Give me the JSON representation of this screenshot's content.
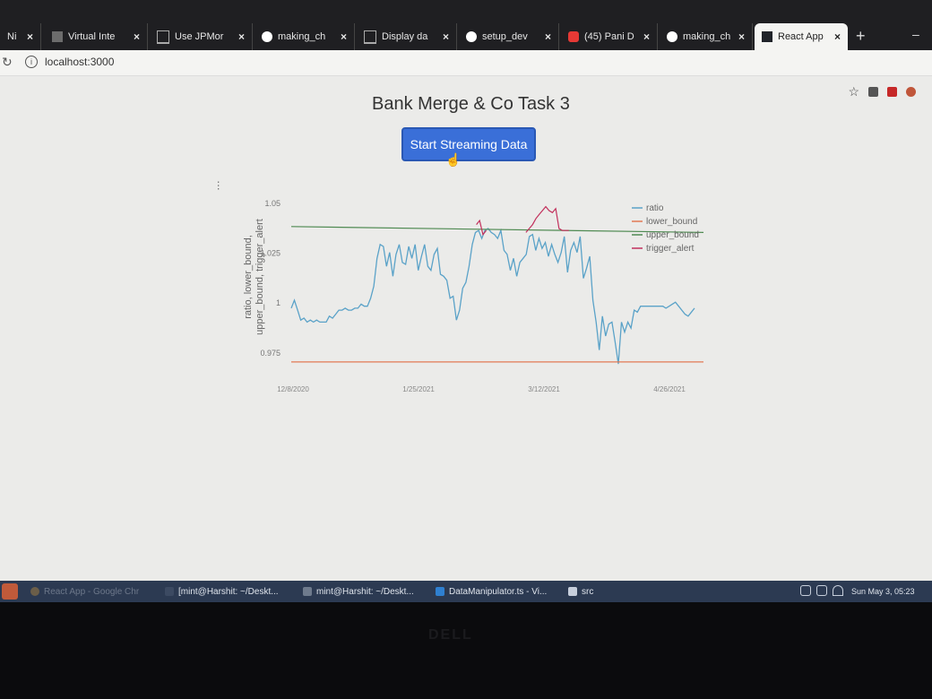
{
  "browser": {
    "tabs": [
      {
        "label": "Ni",
        "color": "#999999"
      },
      {
        "label": "Virtual Inte",
        "color": "#6c6c6c"
      },
      {
        "label": "Use JPMor",
        "color": "#aaaaaa"
      },
      {
        "label": "making_ch",
        "color": "#ffffff"
      },
      {
        "label": "Display da",
        "color": "#aaaaaa"
      },
      {
        "label": "setup_dev",
        "color": "#ffffff"
      },
      {
        "label": "(45) Pani D",
        "color": "#e53935"
      },
      {
        "label": "making_ch",
        "color": "#ffffff"
      },
      {
        "label": "React App",
        "color": "#20232a"
      }
    ],
    "close_glyph": "×",
    "new_tab_glyph": "+",
    "url": "localhost:3000",
    "star_glyph": "☆"
  },
  "page": {
    "title": "Bank Merge & Co Task 3",
    "button_label": "Start Streaming Data",
    "dots": "…",
    "ylabel": "ratio, lower_bound, upper_bound, trigger_alert"
  },
  "chart_data": {
    "type": "line",
    "y_ticks": [
      "1.05",
      "1.025",
      "1",
      "0.975"
    ],
    "x_ticks": [
      "12/8/2020",
      "1/25/2021",
      "3/12/2021",
      "4/26/2021"
    ],
    "ylim": [
      0.965,
      1.055
    ],
    "legend_position": "top-right",
    "series": [
      {
        "name": "ratio",
        "color": "#5aa2c8",
        "values": [
          0.997,
          1.001,
          0.996,
          0.991,
          0.992,
          0.99,
          0.991,
          0.99,
          0.991,
          0.99,
          0.99,
          0.99,
          0.993,
          0.992,
          0.994,
          0.996,
          0.996,
          0.997,
          0.996,
          0.996,
          0.997,
          0.997,
          0.999,
          0.998,
          0.998,
          1.002,
          1.008,
          1.022,
          1.029,
          1.028,
          1.018,
          1.025,
          1.013,
          1.024,
          1.029,
          1.02,
          1.019,
          1.028,
          1.022,
          1.029,
          1.016,
          1.023,
          1.029,
          1.018,
          1.016,
          1.024,
          1.027,
          1.014,
          1.013,
          1.011,
          1.002,
          1.003,
          0.991,
          0.996,
          1.007,
          1.01,
          1.018,
          1.029,
          1.035,
          1.036,
          1.032,
          1.036,
          1.037,
          1.035,
          1.034,
          1.032,
          1.036,
          1.026,
          1.024,
          1.016,
          1.022,
          1.013,
          1.02,
          1.022,
          1.024,
          1.033,
          1.034,
          1.026,
          1.032,
          1.027,
          1.03,
          1.023,
          1.029,
          1.024,
          1.02,
          1.025,
          1.033,
          1.015,
          1.026,
          1.03,
          1.025,
          1.033,
          1.012,
          1.017,
          1.023,
          1.001,
          0.99,
          0.976,
          0.993,
          0.983,
          0.989,
          0.99,
          0.98,
          0.969,
          0.99,
          0.985,
          0.99,
          0.987,
          0.996,
          0.995,
          0.998,
          0.998,
          0.998,
          0.998,
          0.998,
          0.998,
          0.998,
          0.998,
          0.997,
          0.998,
          0.999,
          1,
          0.998,
          0.996,
          0.994,
          0.993,
          0.995,
          0.997
        ]
      },
      {
        "name": "lower_bound",
        "color": "#e27a55",
        "values": [
          0.97,
          0.97
        ]
      },
      {
        "name": "upper_bound",
        "color": "#4f8a52",
        "values": [
          1.038,
          1.035
        ]
      },
      {
        "name": "trigger_alert",
        "color": "#c2305c",
        "values": [
          null,
          null,
          null,
          null,
          null,
          null,
          null,
          null,
          null,
          null,
          null,
          null,
          null,
          null,
          null,
          null,
          null,
          null,
          null,
          null,
          null,
          null,
          null,
          null,
          null,
          null,
          null,
          null,
          null,
          null,
          null,
          null,
          null,
          null,
          null,
          null,
          null,
          null,
          null,
          null,
          null,
          null,
          null,
          null,
          null,
          null,
          null,
          null,
          null,
          null,
          null,
          null,
          null,
          null,
          null,
          null,
          1.039,
          1.041,
          1.034,
          1.036,
          null,
          null,
          null,
          null,
          null,
          null,
          null,
          null,
          null,
          null,
          null,
          1.035,
          1.037,
          1.039,
          1.042,
          1.044,
          1.046,
          1.048,
          1.046,
          1.045,
          1.047,
          1.037,
          1.036,
          1.036,
          1.036,
          null,
          null,
          null,
          null,
          null,
          null,
          null,
          null,
          null,
          null,
          null,
          null,
          null,
          null,
          null,
          null,
          null,
          null,
          null,
          null,
          null,
          null,
          null,
          null,
          null,
          null,
          null,
          null,
          null,
          null,
          null,
          null,
          null,
          null,
          null,
          null,
          null,
          null
        ]
      }
    ]
  },
  "taskbar": {
    "items": [
      "React App - Google Chr",
      "[mint@Harshit: ~/Deskt...",
      "mint@Harshit: ~/Deskt...",
      "DataManipulator.ts - Vi...",
      "src"
    ],
    "clock": "Sun May  3, 05:23"
  },
  "bezel": {
    "logo": "DELL"
  }
}
